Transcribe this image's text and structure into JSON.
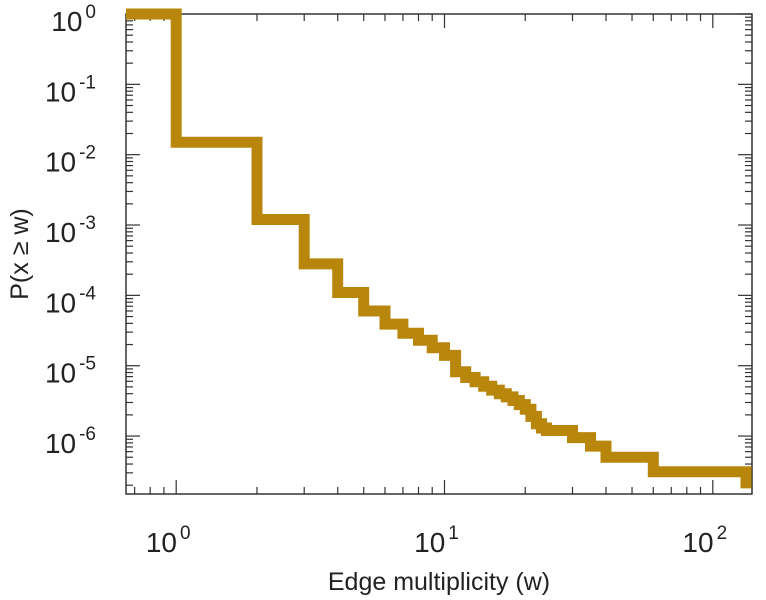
{
  "chart_data": {
    "type": "line",
    "step": true,
    "title": "",
    "xlabel": "Edge multiplicity (w)",
    "ylabel": "P(x ≥ w)",
    "xscale": "log",
    "yscale": "log",
    "xlim": [
      0.65,
      140
    ],
    "ylim": [
      1.5e-07,
      1.0
    ],
    "grid": false,
    "legend": "none",
    "line_color": "#B8860B",
    "x_ticks": [
      {
        "value": 1,
        "base": "10",
        "exp": "0"
      },
      {
        "value": 10,
        "base": "10",
        "exp": "1"
      },
      {
        "value": 100,
        "base": "10",
        "exp": "2"
      }
    ],
    "y_ticks": [
      {
        "value": 1,
        "base": "10",
        "exp": "0"
      },
      {
        "value": 0.1,
        "base": "10",
        "exp": "-1"
      },
      {
        "value": 0.01,
        "base": "10",
        "exp": "-2"
      },
      {
        "value": 0.001,
        "base": "10",
        "exp": "-3"
      },
      {
        "value": 0.0001,
        "base": "10",
        "exp": "-4"
      },
      {
        "value": 1e-05,
        "base": "10",
        "exp": "-5"
      },
      {
        "value": 1e-06,
        "base": "10",
        "exp": "-6"
      }
    ],
    "series": [
      {
        "x": [
          0.65,
          1,
          2,
          3,
          4,
          5,
          6,
          7,
          8,
          9,
          10,
          11,
          12,
          13,
          14,
          15,
          16,
          17,
          18,
          19,
          20,
          21,
          22,
          23,
          24,
          25,
          30,
          35,
          40,
          50,
          60,
          70,
          80,
          90,
          100,
          110,
          120,
          128,
          133
        ],
        "y": [
          1.0,
          0.015,
          0.0012,
          0.00028,
          0.00011,
          6e-05,
          3.9e-05,
          2.9e-05,
          2.3e-05,
          1.8e-05,
          1.4e-05,
          8.2e-06,
          6.8e-06,
          5.9e-06,
          5.1e-06,
          4.5e-06,
          4e-06,
          3.6e-06,
          3.2e-06,
          2.8e-06,
          2.4e-06,
          1.9e-06,
          1.5e-06,
          1.3e-06,
          1.2e-06,
          1.2e-06,
          9.5e-07,
          7.2e-07,
          5e-07,
          5e-07,
          3.1e-07,
          3.1e-07,
          3.1e-07,
          3.1e-07,
          3.1e-07,
          3.1e-07,
          3.1e-07,
          3.1e-07,
          1.8e-07
        ]
      }
    ]
  }
}
